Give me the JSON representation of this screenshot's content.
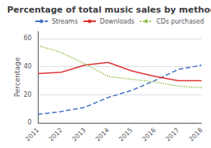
{
  "chart_data": {
    "type": "line",
    "title": "Percentage of total music sales by method",
    "ylabel": "Percentage",
    "categories": [
      "2011",
      "2012",
      "2013",
      "2014",
      "2015",
      "2016",
      "2017",
      "2018"
    ],
    "series": [
      {
        "name": "Streams",
        "color": "#4472c4",
        "line_style": "dashed",
        "values": [
          6,
          8,
          11,
          18,
          23,
          30,
          38,
          41
        ]
      },
      {
        "name": "Downloads",
        "color": "#e03030",
        "line_style": "solid",
        "values": [
          35,
          36,
          41,
          43,
          37,
          33,
          30,
          30
        ]
      },
      {
        "name": "CDs purchased",
        "color": "#92c050",
        "line_style": "dotted",
        "values": [
          55,
          50,
          42,
          33,
          31,
          29,
          26,
          25
        ]
      }
    ],
    "ylim": [
      0,
      65
    ],
    "yticks": [
      0,
      20,
      40,
      60
    ],
    "grid": true,
    "legend": "upper right"
  }
}
